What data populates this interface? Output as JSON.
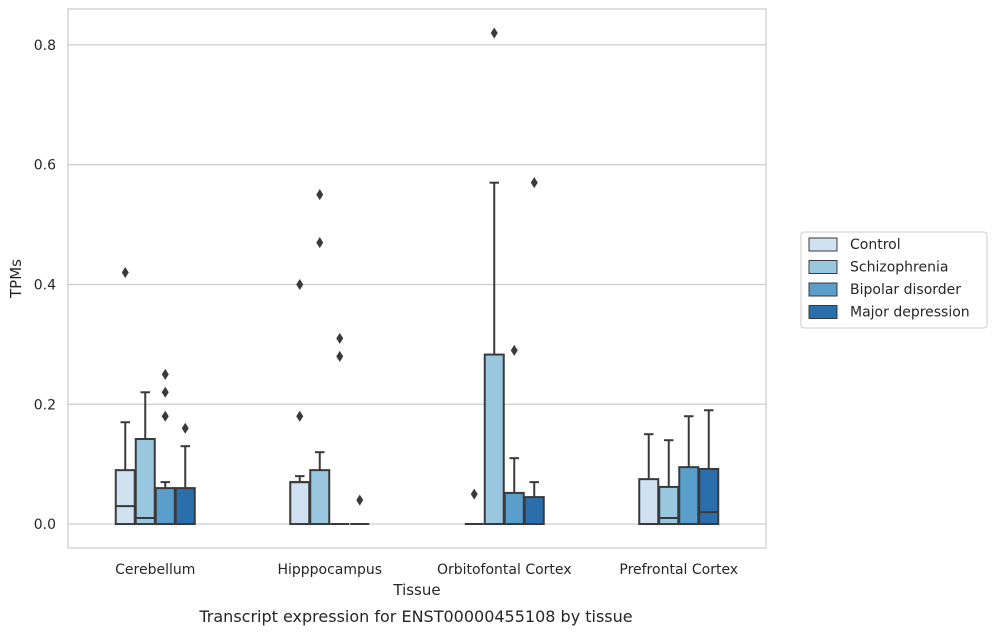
{
  "chart_data": {
    "type": "box",
    "title": "",
    "caption": "Transcript expression for ENST00000455108 by tissue",
    "xlabel": "Tissue",
    "ylabel": "TPMs",
    "ylim": [
      -0.04,
      0.86
    ],
    "yticks": [
      0.0,
      0.2,
      0.4,
      0.6,
      0.8
    ],
    "ytick_labels": [
      "0.0",
      "0.2",
      "0.4",
      "0.6",
      "0.8"
    ],
    "grid": "horizontal",
    "legend_position": "right",
    "categories": [
      "Cerebellum",
      "Hipppocampus",
      "Orbitofontal Cortex",
      "Prefrontal Cortex"
    ],
    "series": [
      {
        "name": "Control",
        "color": "#d0e1f2",
        "boxes": [
          {
            "whislo": 0,
            "q1": 0,
            "med": 0.03,
            "q3": 0.09,
            "whishi": 0.17,
            "fliers": [
              0.42
            ]
          },
          {
            "whislo": 0,
            "q1": 0,
            "med": 0.07,
            "q3": 0.07,
            "whishi": 0.08,
            "fliers": [
              0.18,
              0.4
            ]
          },
          {
            "whislo": 0,
            "q1": 0,
            "med": 0,
            "q3": 0,
            "whishi": 0,
            "fliers": [
              0.05
            ]
          },
          {
            "whislo": 0,
            "q1": 0,
            "med": 0,
            "q3": 0.075,
            "whishi": 0.15,
            "fliers": []
          }
        ]
      },
      {
        "name": "Schizophrenia",
        "color": "#9ac7e0",
        "boxes": [
          {
            "whislo": 0,
            "q1": 0,
            "med": 0.01,
            "q3": 0.142,
            "whishi": 0.22,
            "fliers": []
          },
          {
            "whislo": 0,
            "q1": 0,
            "med": 0,
            "q3": 0.09,
            "whishi": 0.12,
            "fliers": [
              0.47,
              0.55
            ]
          },
          {
            "whislo": 0,
            "q1": 0,
            "med": 0,
            "q3": 0.283,
            "whishi": 0.57,
            "fliers": [
              0.82
            ]
          },
          {
            "whislo": 0,
            "q1": 0,
            "med": 0.01,
            "q3": 0.062,
            "whishi": 0.14,
            "fliers": []
          }
        ]
      },
      {
        "name": "Bipolar disorder",
        "color": "#5a9fcc",
        "boxes": [
          {
            "whislo": 0,
            "q1": 0,
            "med": 0,
            "q3": 0.06,
            "whishi": 0.07,
            "fliers": [
              0.18,
              0.22,
              0.25
            ]
          },
          {
            "whislo": 0,
            "q1": 0,
            "med": 0,
            "q3": 0,
            "whishi": 0,
            "fliers": [
              0.28,
              0.31
            ]
          },
          {
            "whislo": 0,
            "q1": 0,
            "med": 0,
            "q3": 0.052,
            "whishi": 0.11,
            "fliers": [
              0.29
            ]
          },
          {
            "whislo": 0,
            "q1": 0,
            "med": 0,
            "q3": 0.095,
            "whishi": 0.18,
            "fliers": []
          }
        ]
      },
      {
        "name": "Major depression",
        "color": "#2a6eac",
        "boxes": [
          {
            "whislo": 0,
            "q1": 0,
            "med": 0,
            "q3": 0.06,
            "whishi": 0.13,
            "fliers": [
              0.16
            ]
          },
          {
            "whislo": 0,
            "q1": 0,
            "med": 0,
            "q3": 0,
            "whishi": 0,
            "fliers": [
              0.04
            ]
          },
          {
            "whislo": 0,
            "q1": 0,
            "med": 0,
            "q3": 0.045,
            "whishi": 0.07,
            "fliers": [
              0.57
            ]
          },
          {
            "whislo": 0,
            "q1": 0,
            "med": 0.02,
            "q3": 0.092,
            "whishi": 0.19,
            "fliers": []
          }
        ]
      }
    ]
  }
}
